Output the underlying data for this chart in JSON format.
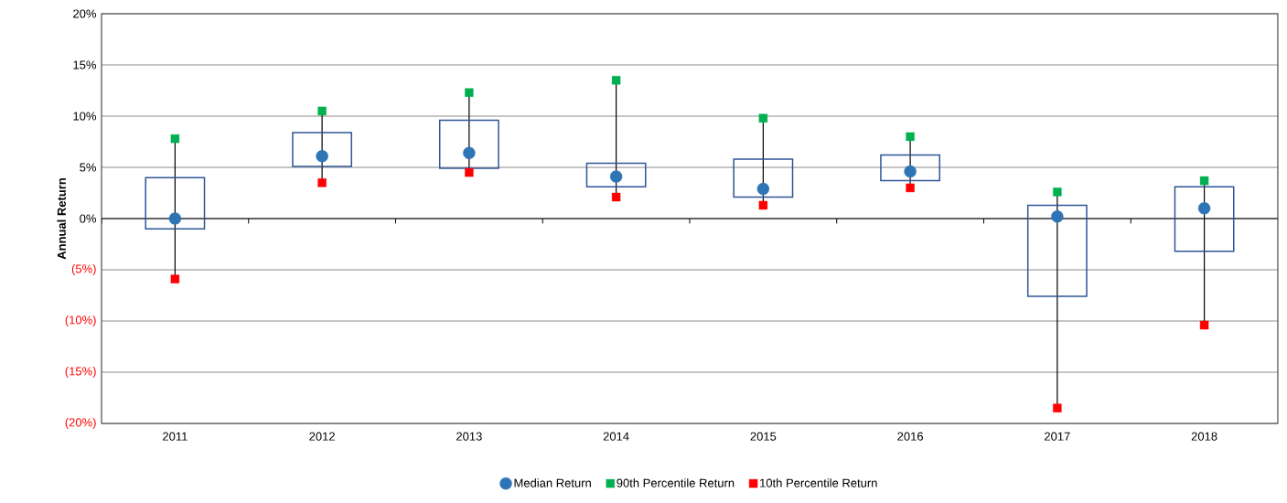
{
  "chart_data": {
    "type": "box",
    "ylabel": "Annual Return",
    "categories": [
      "2011",
      "2012",
      "2013",
      "2014",
      "2015",
      "2016",
      "2017",
      "2018"
    ],
    "series": [
      {
        "type": "box",
        "color": "#2f5597",
        "boxes": [
          {
            "low": -5.9,
            "q1": -1.0,
            "q3": 4.0,
            "high": 7.8
          },
          {
            "low": 3.5,
            "q1": 5.1,
            "q3": 8.4,
            "high": 10.5
          },
          {
            "low": 4.5,
            "q1": 4.9,
            "q3": 9.6,
            "high": 12.3
          },
          {
            "low": 2.1,
            "q1": 3.1,
            "q3": 5.4,
            "high": 13.5
          },
          {
            "low": 1.3,
            "q1": 2.1,
            "q3": 5.8,
            "high": 9.8
          },
          {
            "low": 3.0,
            "q1": 3.7,
            "q3": 6.2,
            "high": 8.0
          },
          {
            "low": -18.5,
            "q1": -7.6,
            "q3": 1.3,
            "high": 2.6
          },
          {
            "low": -10.4,
            "q1": -3.2,
            "q3": 3.1,
            "high": 3.7
          }
        ]
      },
      {
        "type": "scatter",
        "name": "Median Return",
        "color": "#2e75b6",
        "marker": "circle",
        "values": [
          0.0,
          6.1,
          6.4,
          4.1,
          2.9,
          4.6,
          0.2,
          1.0
        ]
      },
      {
        "type": "scatter",
        "name": "90th Percentile Return",
        "color": "#00b050",
        "marker": "square",
        "values": [
          7.8,
          10.5,
          12.3,
          13.5,
          9.8,
          8.0,
          2.6,
          3.7
        ]
      },
      {
        "type": "scatter",
        "name": "10th Percentile Return",
        "color": "#ff0000",
        "marker": "square",
        "values": [
          -5.9,
          3.5,
          4.5,
          2.1,
          1.3,
          3.0,
          -18.5,
          -10.4
        ]
      }
    ],
    "ylim": [
      -20,
      20
    ],
    "yticks": [
      {
        "value": -20,
        "label": "(20%)"
      },
      {
        "value": -15,
        "label": "(15%)"
      },
      {
        "value": -10,
        "label": "(10%)"
      },
      {
        "value": -5,
        "label": "(5%)"
      },
      {
        "value": 0,
        "label": "0%"
      },
      {
        "value": 5,
        "label": "5%"
      },
      {
        "value": 10,
        "label": "10%"
      },
      {
        "value": 15,
        "label": "15%"
      },
      {
        "value": 20,
        "label": "20%"
      }
    ],
    "grid": "y",
    "legend": "bottom"
  }
}
